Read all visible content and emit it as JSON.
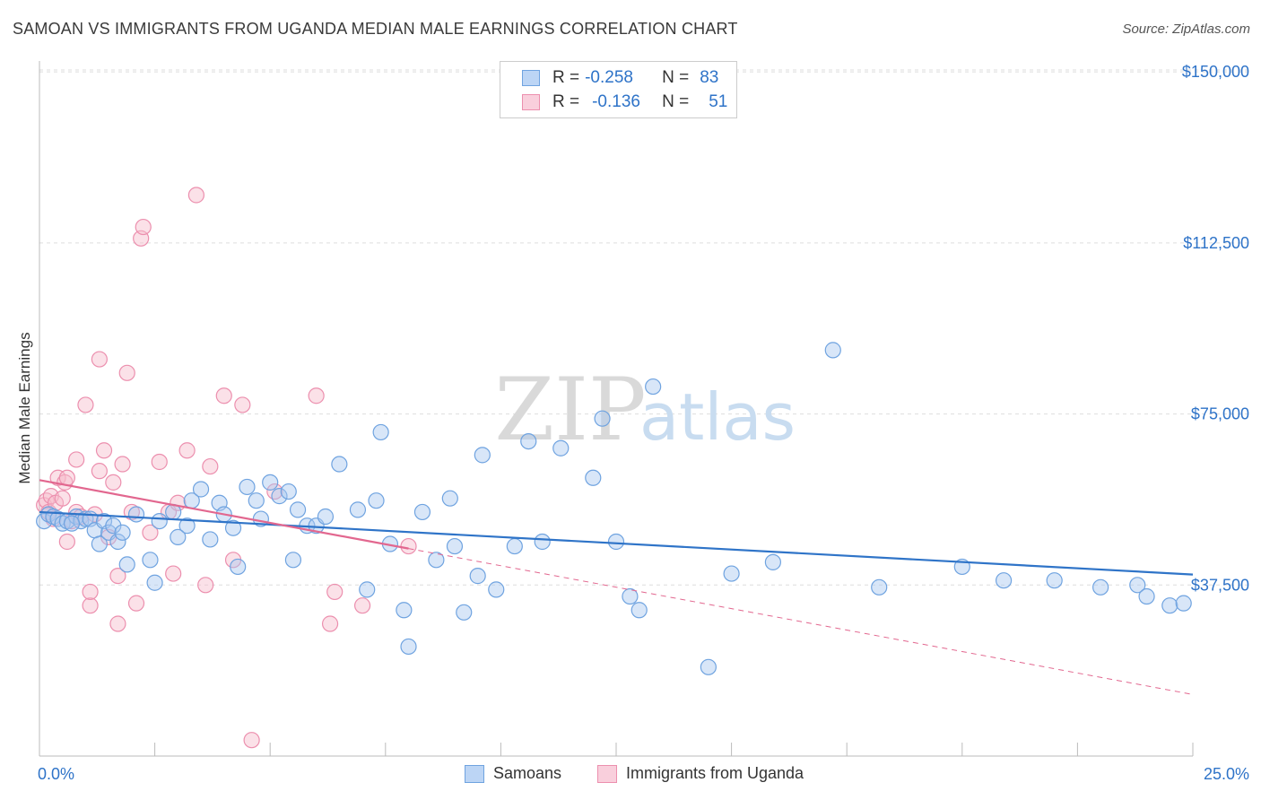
{
  "title": "SAMOAN VS IMMIGRANTS FROM UGANDA MEDIAN MALE EARNINGS CORRELATION CHART",
  "source": "Source: ZipAtlas.com",
  "watermark": {
    "zip": "ZIP",
    "atlas": "atlas"
  },
  "legend": {
    "rows": [
      {
        "r_label": "R =",
        "r_value": "-0.258",
        "n_label": "N =",
        "n_value": "83",
        "color": "#a9c8f0"
      },
      {
        "r_label": "R =",
        "r_value": "-0.136",
        "n_label": "N =",
        "n_value": "51",
        "color": "#f6bccd"
      }
    ]
  },
  "bottom_legend": [
    {
      "label": "Samoans",
      "color": "#a9c8f0"
    },
    {
      "label": "Immigrants from Uganda",
      "color": "#f6bccd"
    }
  ],
  "chart_data": {
    "type": "scatter",
    "title": "SAMOAN VS IMMIGRANTS FROM UGANDA MEDIAN MALE EARNINGS CORRELATION CHART",
    "xlabel": "",
    "ylabel": "Median Male Earnings",
    "xlim": [
      0,
      25
    ],
    "ylim": [
      0,
      152000
    ],
    "x_tick_labels": {
      "left": "0.0%",
      "right": "25.0%"
    },
    "y_ticks": [
      {
        "value": 37500,
        "label": "$37,500"
      },
      {
        "value": 75000,
        "label": "$75,000"
      },
      {
        "value": 112500,
        "label": "$112,500"
      },
      {
        "value": 150000,
        "label": "$150,000"
      }
    ],
    "series": [
      {
        "name": "Samoans",
        "color": "#6fa3e0",
        "fill": "#a9c8f0",
        "trend": {
          "x0": 0,
          "y0": 53500,
          "x1": 25,
          "y1": 39800,
          "color": "#2f74c8"
        },
        "points": [
          [
            0.1,
            51500
          ],
          [
            0.2,
            53000
          ],
          [
            0.3,
            52500
          ],
          [
            0.4,
            52000
          ],
          [
            0.5,
            51000
          ],
          [
            0.6,
            51500
          ],
          [
            0.8,
            52500
          ],
          [
            0.9,
            51500
          ],
          [
            1.0,
            52000
          ],
          [
            1.1,
            52000
          ],
          [
            1.2,
            49500
          ],
          [
            1.3,
            46500
          ],
          [
            1.4,
            51500
          ],
          [
            1.5,
            49000
          ],
          [
            1.6,
            50500
          ],
          [
            1.7,
            47000
          ],
          [
            1.8,
            49000
          ],
          [
            2.1,
            53000
          ],
          [
            2.4,
            43000
          ],
          [
            2.5,
            38000
          ],
          [
            2.6,
            51500
          ],
          [
            2.9,
            53500
          ],
          [
            3.2,
            50500
          ],
          [
            3.3,
            56000
          ],
          [
            3.5,
            58500
          ],
          [
            3.7,
            47500
          ],
          [
            3.9,
            55500
          ],
          [
            4.0,
            53000
          ],
          [
            4.2,
            50000
          ],
          [
            4.3,
            41500
          ],
          [
            4.5,
            59000
          ],
          [
            4.7,
            56000
          ],
          [
            5.0,
            60000
          ],
          [
            5.2,
            57000
          ],
          [
            5.4,
            58000
          ],
          [
            5.5,
            43000
          ],
          [
            5.8,
            50500
          ],
          [
            6.0,
            50500
          ],
          [
            6.5,
            64000
          ],
          [
            6.9,
            54000
          ],
          [
            7.1,
            36500
          ],
          [
            7.3,
            56000
          ],
          [
            7.4,
            71000
          ],
          [
            7.6,
            46500
          ],
          [
            7.9,
            32000
          ],
          [
            8.0,
            24000
          ],
          [
            8.3,
            53500
          ],
          [
            8.6,
            43000
          ],
          [
            9.0,
            46000
          ],
          [
            9.2,
            31500
          ],
          [
            9.5,
            39500
          ],
          [
            9.6,
            66000
          ],
          [
            9.9,
            36500
          ],
          [
            10.3,
            46000
          ],
          [
            10.6,
            69000
          ],
          [
            10.9,
            47000
          ],
          [
            12.2,
            74000
          ],
          [
            12.5,
            47000
          ],
          [
            12.8,
            35000
          ],
          [
            13.0,
            32000
          ],
          [
            13.3,
            81000
          ],
          [
            14.5,
            19500
          ],
          [
            15.0,
            40000
          ],
          [
            15.9,
            42500
          ],
          [
            17.2,
            89000
          ],
          [
            18.2,
            37000
          ],
          [
            20.0,
            41500
          ],
          [
            22.0,
            38500
          ],
          [
            23.0,
            37000
          ],
          [
            23.8,
            37500
          ],
          [
            24.0,
            35000
          ],
          [
            24.5,
            33000
          ],
          [
            24.8,
            33500
          ],
          [
            12.0,
            61000
          ],
          [
            6.2,
            52500
          ],
          [
            4.8,
            52000
          ],
          [
            1.9,
            42000
          ],
          [
            0.7,
            51000
          ],
          [
            8.9,
            56500
          ],
          [
            3.0,
            48000
          ],
          [
            5.6,
            54000
          ],
          [
            11.3,
            67500
          ],
          [
            20.9,
            38500
          ]
        ]
      },
      {
        "name": "Immigrants from Uganda",
        "color": "#ec8fae",
        "fill": "#f6bccd",
        "trend": {
          "x0": 0,
          "y0": 60500,
          "x1": 8.0,
          "y1": 45500,
          "color": "#e2678f",
          "dashed_to": {
            "x": 25,
            "y": 13500
          }
        },
        "points": [
          [
            0.1,
            55000
          ],
          [
            0.15,
            56000
          ],
          [
            0.2,
            53500
          ],
          [
            0.25,
            57000
          ],
          [
            0.3,
            52000
          ],
          [
            0.35,
            55500
          ],
          [
            0.4,
            61000
          ],
          [
            0.5,
            56500
          ],
          [
            0.55,
            60000
          ],
          [
            0.6,
            61000
          ],
          [
            0.6,
            47000
          ],
          [
            0.7,
            51500
          ],
          [
            0.8,
            65000
          ],
          [
            0.8,
            53500
          ],
          [
            0.9,
            52500
          ],
          [
            1.0,
            77000
          ],
          [
            1.1,
            33000
          ],
          [
            1.1,
            36000
          ],
          [
            1.2,
            53000
          ],
          [
            1.3,
            87000
          ],
          [
            1.3,
            62500
          ],
          [
            1.4,
            67000
          ],
          [
            1.5,
            48000
          ],
          [
            1.6,
            60000
          ],
          [
            1.7,
            29000
          ],
          [
            1.7,
            39500
          ],
          [
            1.8,
            64000
          ],
          [
            1.9,
            84000
          ],
          [
            2.0,
            53500
          ],
          [
            2.1,
            33500
          ],
          [
            2.2,
            113500
          ],
          [
            2.25,
            116000
          ],
          [
            2.4,
            49000
          ],
          [
            2.6,
            64500
          ],
          [
            2.8,
            53500
          ],
          [
            2.9,
            40000
          ],
          [
            3.0,
            55500
          ],
          [
            3.2,
            67000
          ],
          [
            3.4,
            123000
          ],
          [
            3.6,
            37500
          ],
          [
            3.7,
            63500
          ],
          [
            4.0,
            79000
          ],
          [
            4.2,
            43000
          ],
          [
            4.4,
            77000
          ],
          [
            4.6,
            3500
          ],
          [
            5.1,
            58000
          ],
          [
            6.0,
            79000
          ],
          [
            6.3,
            29000
          ],
          [
            6.4,
            36000
          ],
          [
            7.0,
            33000
          ],
          [
            8.0,
            46000
          ]
        ]
      }
    ]
  }
}
